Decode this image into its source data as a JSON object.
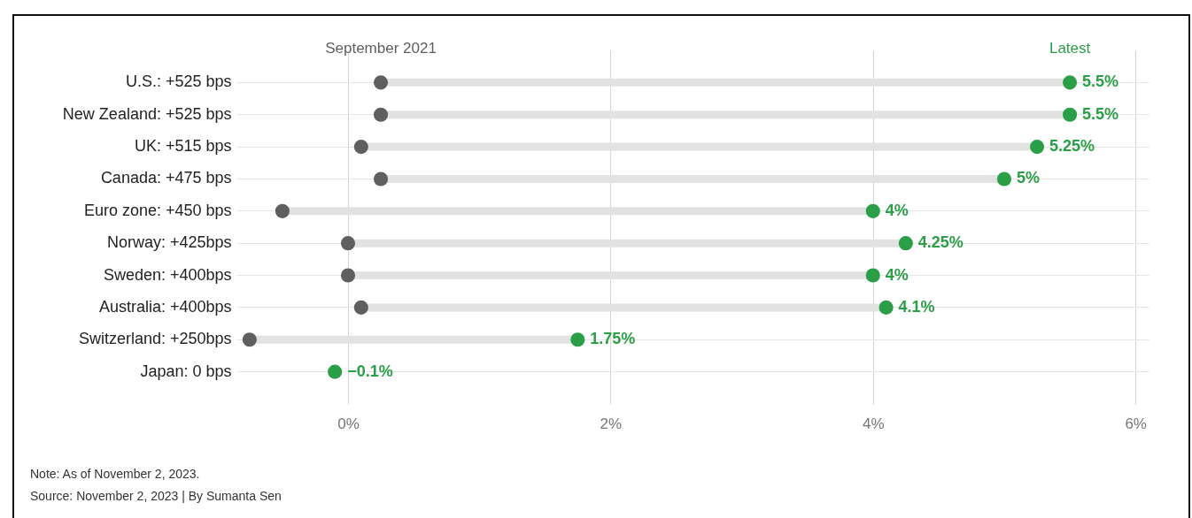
{
  "chart_data": {
    "type": "scatter",
    "orientation": "horizontal",
    "categories": [
      "U.S.: +525 bps",
      "New Zealand: +525 bps",
      "UK: +515 bps",
      "Canada: +475 bps",
      "Euro zone: +450 bps",
      "Norway: +425bps",
      "Sweden: +400bps",
      "Australia: +400bps",
      "Switzerland: +250bps",
      "Japan: 0 bps"
    ],
    "series": [
      {
        "name": "September 2021",
        "color": "#5f5f5f",
        "values": [
          0.25,
          0.25,
          0.1,
          0.25,
          -0.5,
          0,
          0,
          0.1,
          -0.75,
          null
        ]
      },
      {
        "name": "Latest",
        "color": "#2b9e48",
        "values": [
          5.5,
          5.5,
          5.25,
          5,
          4,
          4.25,
          4,
          4.1,
          1.75,
          -0.1
        ],
        "value_labels": [
          "5.5%",
          "5.5%",
          "5.25%",
          "5%",
          "4%",
          "4.25%",
          "4%",
          "4.1%",
          "1.75%",
          "−0.1%"
        ]
      }
    ],
    "xlim": [
      -0.85,
      6.1
    ],
    "xticks": [
      {
        "value": 0,
        "label": "0%"
      },
      {
        "value": 2,
        "label": "2%"
      },
      {
        "value": 4,
        "label": "4%"
      },
      {
        "value": 6,
        "label": "6%"
      }
    ],
    "grid": true,
    "marker": "circle",
    "annotations": [
      "Note: As of November 2, 2023.",
      "Source: November 2, 2023 | By Sumanta Sen"
    ]
  }
}
